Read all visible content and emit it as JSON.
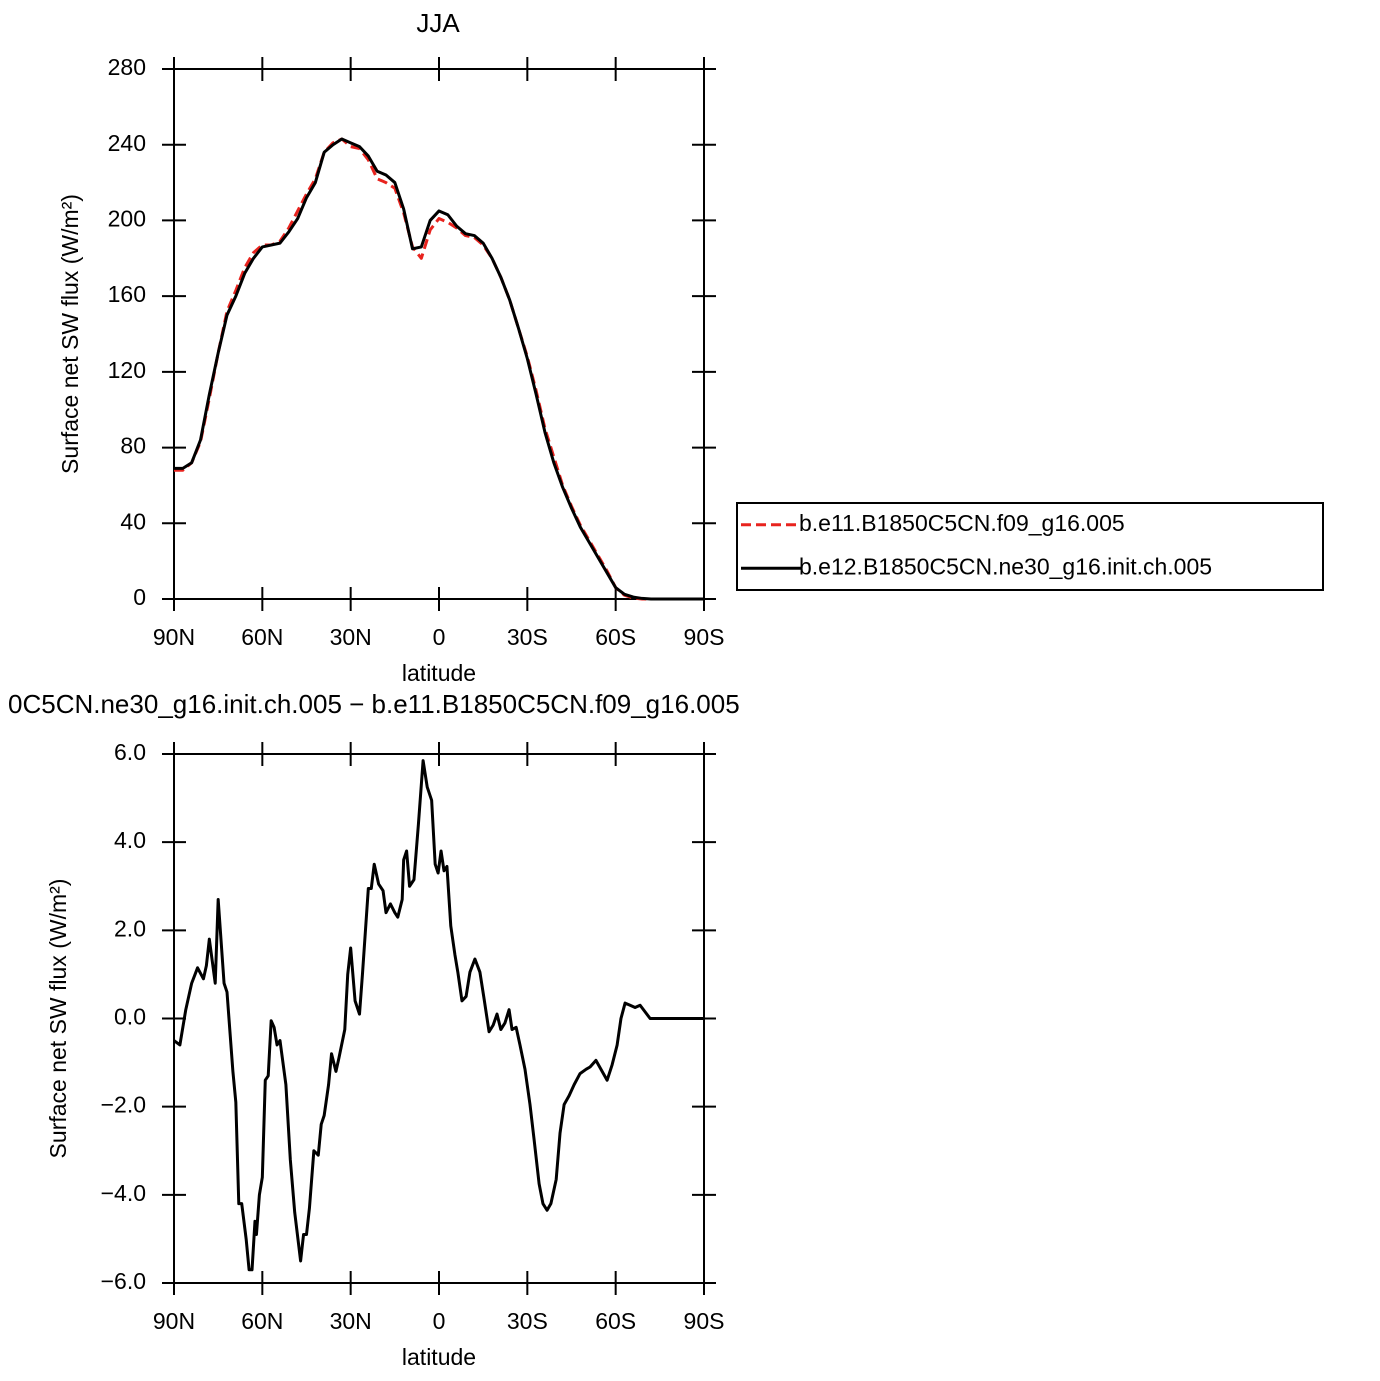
{
  "chart_data": [
    {
      "type": "line",
      "title": "JJA",
      "xlabel": "latitude",
      "ylabel": "Surface net SW flux (W/m²)",
      "x": [
        90,
        87,
        84,
        81,
        78,
        75,
        72,
        69,
        66,
        63,
        60,
        57,
        54,
        51,
        48,
        45,
        42,
        39,
        36,
        33,
        30,
        27,
        24,
        21,
        18,
        15,
        12,
        9,
        6,
        3,
        0,
        -3,
        -6,
        -9,
        -12,
        -15,
        -18,
        -21,
        -24,
        -27,
        -30,
        -33,
        -36,
        -39,
        -42,
        -45,
        -48,
        -51,
        -54,
        -57,
        -60,
        -63,
        -66,
        -69,
        -72,
        -75,
        -78,
        -81,
        -84,
        -87,
        -90
      ],
      "series": [
        {
          "name": "b.e11.B1850C5CN.f09_g16.005",
          "color": "#e8231e",
          "dash": true,
          "values": [
            68,
            68,
            72,
            83,
            106,
            130,
            152,
            163,
            175,
            183,
            187,
            187,
            189,
            196,
            205,
            214,
            222,
            236,
            241,
            243,
            239,
            238,
            232,
            222,
            220,
            217,
            204,
            186,
            180,
            195,
            201,
            199,
            196,
            192,
            191,
            187,
            180,
            170,
            158,
            143,
            128,
            110,
            90,
            75,
            60,
            49,
            39,
            31,
            23,
            15,
            6,
            2,
            0.5,
            0,
            0,
            0,
            0,
            0,
            0,
            0,
            0
          ]
        },
        {
          "name": "b.e12.B1850C5CN.ne30_g16.init.ch.005",
          "color": "#000000",
          "dash": false,
          "values": [
            69,
            69,
            72,
            84,
            108,
            130,
            150,
            160,
            172,
            180,
            186,
            187,
            188,
            194,
            201,
            212,
            220,
            236,
            240,
            243,
            241,
            239,
            234,
            226,
            224,
            220,
            206,
            185,
            186,
            200,
            205,
            203,
            197,
            193,
            192,
            188,
            180,
            170,
            158,
            143,
            127,
            108,
            88,
            72,
            59,
            48,
            38,
            30,
            22,
            14,
            6,
            2.5,
            1,
            0.3,
            0,
            0,
            0,
            0,
            0,
            0,
            0
          ]
        }
      ],
      "xlim": [
        90,
        -90
      ],
      "xticks": [
        {
          "value": 90,
          "label": "90N"
        },
        {
          "value": 60,
          "label": "60N"
        },
        {
          "value": 30,
          "label": "30N"
        },
        0,
        {
          "value": -30,
          "label": "30S"
        },
        {
          "value": -60,
          "label": "60S"
        },
        {
          "value": -90,
          "label": "90S"
        }
      ],
      "ylim": [
        0,
        280
      ],
      "yticks": [
        0,
        40,
        80,
        120,
        160,
        200,
        240,
        280
      ],
      "legend": "right"
    },
    {
      "type": "line",
      "title": "0C5CN.ne30_g16.init.ch.005 − b.e11.B1850C5CN.f09_g16.005",
      "xlabel": "latitude",
      "ylabel": "Surface net SW flux (W/m²)",
      "x": [
        90,
        88,
        86,
        84,
        82,
        80,
        79,
        78,
        76,
        75,
        73,
        72,
        70,
        69,
        68,
        67,
        65.5,
        64.5,
        63.5,
        62.5,
        62,
        61,
        60,
        59,
        58,
        57,
        56,
        55,
        54,
        52,
        50.5,
        49,
        47,
        46,
        45,
        44,
        42.5,
        41,
        40,
        39,
        37.5,
        36.5,
        35,
        34,
        32,
        31,
        30,
        28.5,
        27,
        26,
        24,
        23,
        22,
        20.5,
        19,
        18,
        16.5,
        15,
        14,
        12.5,
        12,
        11,
        10,
        8.5,
        7,
        5.4,
        4,
        2.5,
        1.3,
        0.3,
        -0.7,
        -1.7,
        -2.7,
        -4,
        -5.4,
        -6.4,
        -7.8,
        -9.2,
        -10.5,
        -12.2,
        -13.9,
        -15.3,
        -17,
        -18.4,
        -19.7,
        -21,
        -22.4,
        -23.8,
        -24.8,
        -26.2,
        -27.5,
        -29.2,
        -30.9,
        -32.3,
        -34,
        -35.3,
        -36.7,
        -38,
        -39.8,
        -41.1,
        -42.5,
        -44.2,
        -45.9,
        -47.9,
        -50,
        -51.3,
        -53.3,
        -55,
        -57.1,
        -58.8,
        -60.5,
        -61.8,
        -63.2,
        -64.9,
        -66.6,
        -68.3,
        -70,
        -71.7,
        -75,
        -90
      ],
      "series": [
        {
          "color": "#000000",
          "dash": false,
          "values": [
            -0.5,
            -0.6,
            0.2,
            0.8,
            1.15,
            0.9,
            1.2,
            1.8,
            0.8,
            2.7,
            0.8,
            0.6,
            -1.2,
            -1.9,
            -4.2,
            -4.2,
            -5.0,
            -5.7,
            -5.7,
            -4.6,
            -4.9,
            -4.0,
            -3.6,
            -1.4,
            -1.3,
            -0.05,
            -0.2,
            -0.6,
            -0.5,
            -1.5,
            -3.2,
            -4.4,
            -5.5,
            -4.9,
            -4.9,
            -4.3,
            -3.0,
            -3.1,
            -2.4,
            -2.2,
            -1.5,
            -0.8,
            -1.2,
            -0.9,
            -0.25,
            1.0,
            1.6,
            0.4,
            0.1,
            1.0,
            2.95,
            2.95,
            3.5,
            3.05,
            2.9,
            2.4,
            2.6,
            2.4,
            2.3,
            2.7,
            3.6,
            3.8,
            3.0,
            3.15,
            4.4,
            5.85,
            5.25,
            4.95,
            3.5,
            3.3,
            3.8,
            3.35,
            3.45,
            2.1,
            1.45,
            1.05,
            0.4,
            0.5,
            1.05,
            1.35,
            1.05,
            0.45,
            -0.3,
            -0.15,
            0.1,
            -0.25,
            -0.1,
            0.2,
            -0.25,
            -0.2,
            -0.6,
            -1.15,
            -1.95,
            -2.75,
            -3.75,
            -4.2,
            -4.35,
            -4.2,
            -3.65,
            -2.6,
            -1.95,
            -1.75,
            -1.5,
            -1.25,
            -1.15,
            -1.1,
            -0.95,
            -1.15,
            -1.4,
            -1.05,
            -0.6,
            0,
            0.35,
            0.3,
            0.25,
            0.3,
            0.15,
            0,
            0,
            0
          ]
        }
      ],
      "xlim": [
        90,
        -90
      ],
      "xticks": [
        {
          "value": 90,
          "label": "90N"
        },
        {
          "value": 60,
          "label": "60N"
        },
        {
          "value": 30,
          "label": "30N"
        },
        0,
        {
          "value": -30,
          "label": "30S"
        },
        {
          "value": -60,
          "label": "60S"
        },
        {
          "value": -90,
          "label": "90S"
        }
      ],
      "ylim": [
        -6,
        6
      ],
      "yticks": [
        {
          "value": -6,
          "label": "−6.0"
        },
        {
          "value": -4,
          "label": "−4.0"
        },
        {
          "value": -2,
          "label": "−2.0"
        },
        {
          "value": 0,
          "label": "0.0"
        },
        {
          "value": 2,
          "label": "2.0"
        },
        {
          "value": 4,
          "label": "4.0"
        },
        {
          "value": 6,
          "label": "6.0"
        }
      ]
    }
  ]
}
